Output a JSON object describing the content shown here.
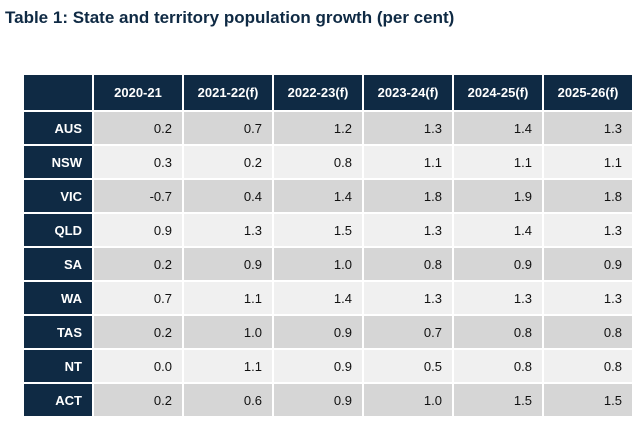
{
  "title": "Table 1: State and territory population growth (per cent)",
  "colors": {
    "header_bg": "#0f2a44",
    "header_text": "#ffffff",
    "row_shaded": "#d6d6d6",
    "row_plain": "#f0f0f0"
  },
  "table": {
    "columns": [
      "2020-21",
      "2021-22(f)",
      "2022-23(f)",
      "2023-24(f)",
      "2024-25(f)",
      "2025-26(f)"
    ],
    "rows": [
      {
        "label": "AUS",
        "values": [
          "0.2",
          "0.7",
          "1.2",
          "1.3",
          "1.4",
          "1.3"
        ]
      },
      {
        "label": "NSW",
        "values": [
          "0.3",
          "0.2",
          "0.8",
          "1.1",
          "1.1",
          "1.1"
        ]
      },
      {
        "label": "VIC",
        "values": [
          "-0.7",
          "0.4",
          "1.4",
          "1.8",
          "1.9",
          "1.8"
        ]
      },
      {
        "label": "QLD",
        "values": [
          "0.9",
          "1.3",
          "1.5",
          "1.3",
          "1.4",
          "1.3"
        ]
      },
      {
        "label": "SA",
        "values": [
          "0.2",
          "0.9",
          "1.0",
          "0.8",
          "0.9",
          "0.9"
        ]
      },
      {
        "label": "WA",
        "values": [
          "0.7",
          "1.1",
          "1.4",
          "1.3",
          "1.3",
          "1.3"
        ]
      },
      {
        "label": "TAS",
        "values": [
          "0.2",
          "1.0",
          "0.9",
          "0.7",
          "0.8",
          "0.8"
        ]
      },
      {
        "label": "NT",
        "values": [
          "0.0",
          "1.1",
          "0.9",
          "0.5",
          "0.8",
          "0.8"
        ]
      },
      {
        "label": "ACT",
        "values": [
          "0.2",
          "0.6",
          "0.9",
          "1.0",
          "1.5",
          "1.5"
        ]
      }
    ]
  }
}
